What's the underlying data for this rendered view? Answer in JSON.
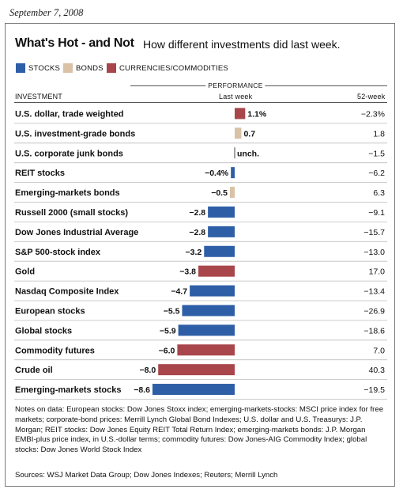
{
  "date": "September 7, 2008",
  "title": "What's Hot - and Not",
  "subtitle": "How different investments did last week.",
  "legend": [
    {
      "label": "STOCKS",
      "color": "#2e5fa6"
    },
    {
      "label": "BONDS",
      "color": "#d9c2a6"
    },
    {
      "label": "CURRENCIES/COMMODITIES",
      "color": "#a8464b"
    }
  ],
  "headers": {
    "performance": "PERFORMANCE",
    "investment": "INVESTMENT",
    "last_week": "Last week",
    "week52": "52-week"
  },
  "chart_data": {
    "type": "bar",
    "orientation": "horizontal",
    "categories": [
      "U.S. dollar, trade weighted",
      "U.S. investment-grade bonds",
      "U.S. corporate junk bonds",
      "REIT stocks",
      "Emerging-markets bonds",
      "Russell 2000 (small stocks)",
      "Dow Jones Industrial Average",
      "S&P 500-stock index",
      "Gold",
      "Nasdaq Composite Index",
      "European stocks",
      "Global stocks",
      "Commodity futures",
      "Crude oil",
      "Emerging-markets stocks"
    ],
    "groups": [
      "currency",
      "bond",
      "bond",
      "stock",
      "bond",
      "stock",
      "stock",
      "stock",
      "currency",
      "stock",
      "stock",
      "stock",
      "currency",
      "currency",
      "stock"
    ],
    "last_week": [
      1.1,
      0.7,
      0,
      -0.4,
      -0.5,
      -2.8,
      -2.8,
      -3.2,
      -3.8,
      -4.7,
      -5.5,
      -5.9,
      -6.0,
      -8.0,
      -8.6
    ],
    "last_week_labels": [
      "1.1%",
      "0.7",
      "unch.",
      "−0.4%",
      "−0.5",
      "−2.8",
      "−2.8",
      "−3.2",
      "−3.8",
      "−4.7",
      "−5.5",
      "−5.9",
      "−6.0",
      "−8.0",
      "−8.6"
    ],
    "week52_labels": [
      "−2.3%",
      "1.8",
      "−1.5",
      "−6.2",
      "6.3",
      "−9.1",
      "−15.7",
      "−13.0",
      "17.0",
      "−13.4",
      "−26.9",
      "−18.6",
      "7.0",
      "40.3",
      "−19.5"
    ]
  },
  "notes": "Notes on data: European stocks: Dow Jones Stoxx index; emerging-markets-stocks: MSCI price index for free markets; corporate-bond prices: Merrill Lynch Global Bond Indexes; U.S. dollar and U.S. Treasurys: J.P. Morgan; REIT stocks: Dow Jones Equity REIT Total Return Index; emerging-markets bonds: J.P. Morgan EMBI-plus price index, in U.S.-dollar terms; commodity futures: Dow Jones-AIG Commodity Index; global stocks: Dow Jones World Stock Index",
  "sources": "Sources: WSJ Market Data Group; Dow Jones Indexes; Reuters; Merrill Lynch"
}
